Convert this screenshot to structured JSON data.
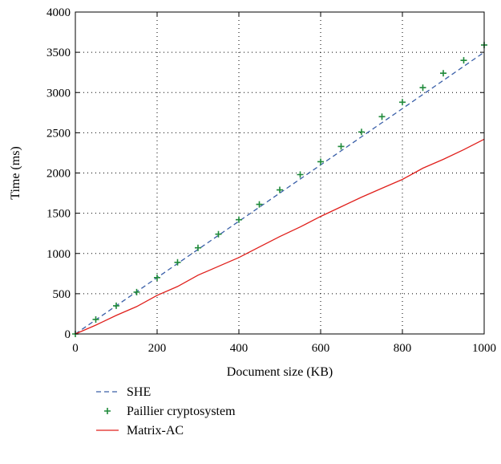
{
  "chart_data": {
    "type": "line",
    "xlabel": "Document size (KB)",
    "ylabel": "Time (ms)",
    "xlim": [
      0,
      1000
    ],
    "ylim": [
      0,
      4000
    ],
    "x_ticks": [
      "0",
      "200",
      "400",
      "600",
      "800",
      "1000"
    ],
    "y_ticks": [
      "0",
      "500",
      "1000",
      "1500",
      "2000",
      "2500",
      "3000",
      "3500",
      "4000"
    ],
    "grid": true,
    "legend_position": "below-left",
    "series": [
      {
        "name": "SHE",
        "style": "dashed",
        "color": "#3a5fa8",
        "x": [
          0,
          1000
        ],
        "y": [
          0,
          3500
        ]
      },
      {
        "name": "Paillier cryptosystem",
        "style": "markers-plus",
        "color": "#1f8a3a",
        "x": [
          0,
          50,
          100,
          150,
          200,
          250,
          300,
          350,
          400,
          450,
          500,
          550,
          600,
          650,
          700,
          750,
          800,
          850,
          900,
          950,
          1000
        ],
        "y": [
          0,
          180,
          350,
          520,
          700,
          890,
          1070,
          1240,
          1420,
          1610,
          1790,
          1980,
          2140,
          2330,
          2510,
          2700,
          2880,
          3060,
          3240,
          3400,
          3590
        ]
      },
      {
        "name": "Matrix-AC",
        "style": "solid",
        "color": "#e0201c",
        "x": [
          0,
          50,
          100,
          150,
          200,
          250,
          300,
          350,
          400,
          450,
          500,
          550,
          600,
          650,
          700,
          750,
          800,
          850,
          900,
          950,
          1000
        ],
        "y": [
          0,
          110,
          230,
          340,
          480,
          590,
          730,
          840,
          950,
          1080,
          1210,
          1330,
          1460,
          1580,
          1700,
          1810,
          1920,
          2060,
          2170,
          2290,
          2420
        ]
      }
    ]
  }
}
